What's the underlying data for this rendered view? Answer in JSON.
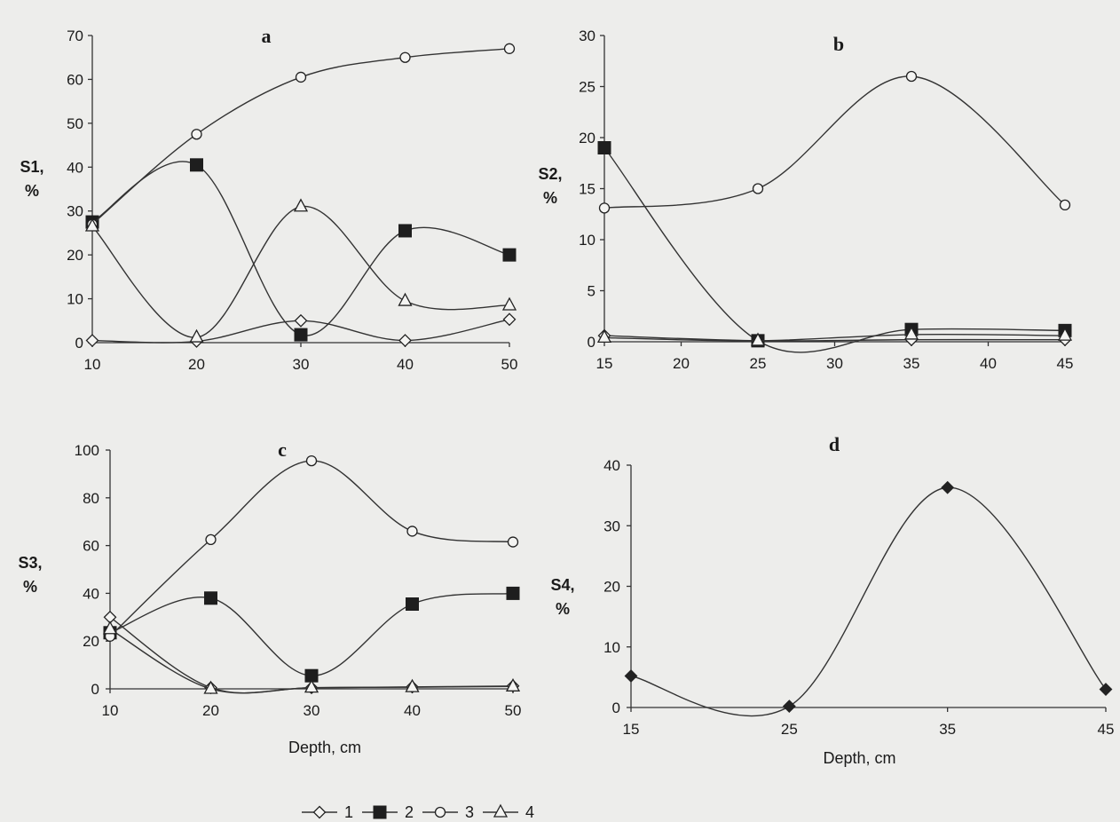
{
  "chart_data": [
    {
      "type": "line",
      "panel_label": "a",
      "ylabel": [
        "S1,",
        "%"
      ],
      "xlabel": "",
      "xlim": [
        10,
        50
      ],
      "ylim": [
        0,
        70
      ],
      "x_ticks": [
        10,
        20,
        30,
        40,
        50
      ],
      "y_ticks": [
        0,
        10,
        20,
        30,
        40,
        50,
        60,
        70
      ],
      "x": [
        10,
        20,
        30,
        40,
        50
      ],
      "series": [
        {
          "name": "1",
          "marker": "diamond-open",
          "values": [
            0.5,
            0.3,
            5,
            0.5,
            5.3
          ]
        },
        {
          "name": "2",
          "marker": "square-filled",
          "values": [
            27.5,
            40.5,
            1.8,
            25.5,
            20
          ]
        },
        {
          "name": "3",
          "marker": "circle-open",
          "values": [
            27,
            47.5,
            60.5,
            65,
            67
          ]
        },
        {
          "name": "4",
          "marker": "triangle-open",
          "values": [
            26.5,
            1.2,
            31,
            9.5,
            8.5
          ]
        }
      ]
    },
    {
      "type": "line",
      "panel_label": "b",
      "ylabel": [
        "S2,",
        "%"
      ],
      "xlabel": "",
      "xlim": [
        15,
        45
      ],
      "ylim": [
        0,
        30
      ],
      "x_ticks": [
        15,
        20,
        25,
        30,
        35,
        40,
        45
      ],
      "y_ticks": [
        0,
        5,
        10,
        15,
        20,
        25,
        30
      ],
      "x": [
        15,
        25,
        35,
        45
      ],
      "series": [
        {
          "name": "1",
          "marker": "diamond-open",
          "values": [
            0.6,
            0.1,
            0.2,
            0.2
          ]
        },
        {
          "name": "2",
          "marker": "square-filled",
          "values": [
            19,
            0.1,
            1.2,
            1.1
          ]
        },
        {
          "name": "3",
          "marker": "circle-open",
          "values": [
            13.1,
            15,
            26,
            13.4
          ]
        },
        {
          "name": "4",
          "marker": "triangle-open",
          "values": [
            0.4,
            0.1,
            0.7,
            0.6
          ]
        }
      ]
    },
    {
      "type": "line",
      "panel_label": "c",
      "ylabel": [
        "S3,",
        "%"
      ],
      "xlabel": "Depth, cm",
      "xlim": [
        10,
        50
      ],
      "ylim": [
        0,
        100
      ],
      "x_ticks": [
        10,
        20,
        30,
        40,
        50
      ],
      "y_ticks": [
        0,
        20,
        40,
        60,
        80,
        100
      ],
      "x": [
        10,
        20,
        30,
        40,
        50
      ],
      "series": [
        {
          "name": "1",
          "marker": "diamond-open",
          "values": [
            30,
            0.5,
            0.5,
            0.8,
            1.2
          ]
        },
        {
          "name": "2",
          "marker": "square-filled",
          "values": [
            23.5,
            38,
            5.5,
            35.5,
            40
          ]
        },
        {
          "name": "3",
          "marker": "circle-open",
          "values": [
            22,
            62.5,
            95.5,
            66,
            61.5
          ]
        },
        {
          "name": "4",
          "marker": "triangle-open",
          "values": [
            25,
            0,
            0.5,
            0.7,
            1
          ]
        }
      ]
    },
    {
      "type": "line",
      "panel_label": "d",
      "ylabel": [
        "S4,",
        "%"
      ],
      "xlabel": "Depth, cm",
      "xlim": [
        15,
        45
      ],
      "ylim": [
        0,
        40
      ],
      "x_ticks": [
        15,
        25,
        35,
        45
      ],
      "y_ticks": [
        0,
        10,
        20,
        30,
        40
      ],
      "x": [
        15,
        25,
        35,
        45
      ],
      "series": [
        {
          "name": "",
          "marker": "diamond-filled",
          "values": [
            5.2,
            0.2,
            36.3,
            3
          ]
        }
      ]
    }
  ],
  "legend": {
    "position": "bottom-center",
    "items": [
      {
        "label": "1",
        "marker": "diamond-open"
      },
      {
        "label": "2",
        "marker": "square-filled"
      },
      {
        "label": "3",
        "marker": "circle-open"
      },
      {
        "label": "4",
        "marker": "triangle-open"
      }
    ]
  }
}
